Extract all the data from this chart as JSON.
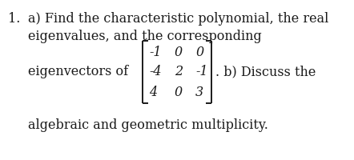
{
  "background_color": "#ffffff",
  "text_color": "#1a1a1a",
  "figsize": [
    4.42,
    2.0
  ],
  "dpi": 100,
  "fontsize": 11.5,
  "line1": "a) Find the characteristic polynomial, the real",
  "line2": "eigenvalues, and the corresponding",
  "line3_pre": "eigenvectors of",
  "line3_suf": ". b) Discuss the",
  "line4": "algebraic and geometric multiplicity.",
  "num_label": "1.",
  "matrix": [
    [
      "-1",
      "0",
      "0"
    ],
    [
      "-4",
      "2",
      "-1"
    ],
    [
      "4",
      "0",
      "3"
    ]
  ]
}
